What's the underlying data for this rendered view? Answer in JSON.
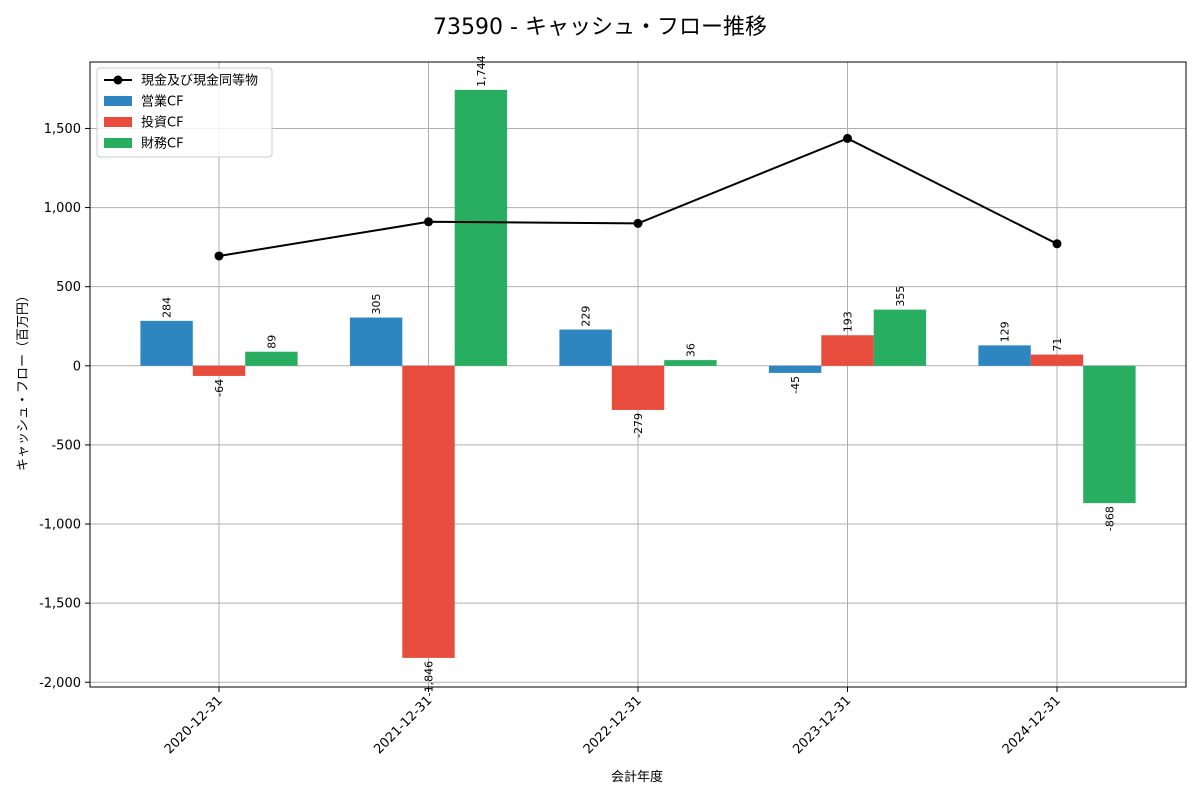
{
  "chart_data": {
    "type": "bar",
    "title": "73590 - キャッシュ・フロー推移",
    "xlabel": "会計年度",
    "ylabel": "キャッシュ・フロー（百万円）",
    "categories": [
      "2020-12-31",
      "2021-12-31",
      "2022-12-31",
      "2023-12-31",
      "2024-12-31"
    ],
    "ylim": [
      -2030,
      1920
    ],
    "yticks": [
      -2000,
      -1500,
      -1000,
      -500,
      0,
      500,
      1000,
      1500
    ],
    "ytick_labels": [
      "-2,000",
      "-1,500",
      "-1,000",
      "-500",
      "0",
      "500",
      "1,000",
      "1,500"
    ],
    "grid": true,
    "legend_position": "top-left",
    "series": [
      {
        "name": "営業CF",
        "kind": "bar",
        "color": "#2e86c1",
        "values": [
          284,
          305,
          229,
          -45,
          129
        ],
        "labels": [
          "284",
          "305",
          "229",
          "-45",
          "129"
        ]
      },
      {
        "name": "投資CF",
        "kind": "bar",
        "color": "#e74c3c",
        "values": [
          -64,
          -1846,
          -279,
          193,
          71
        ],
        "labels": [
          "-64",
          "-1,846",
          "-279",
          "193",
          "71"
        ]
      },
      {
        "name": "財務CF",
        "kind": "bar",
        "color": "#27ae60",
        "values": [
          89,
          1744,
          36,
          355,
          -868
        ],
        "labels": [
          "89",
          "1,744",
          "36",
          "355",
          "-868"
        ]
      }
    ],
    "line": {
      "name": "現金及び現金同等物",
      "color": "#000000",
      "values": [
        694,
        910,
        900,
        1437,
        771
      ]
    }
  }
}
